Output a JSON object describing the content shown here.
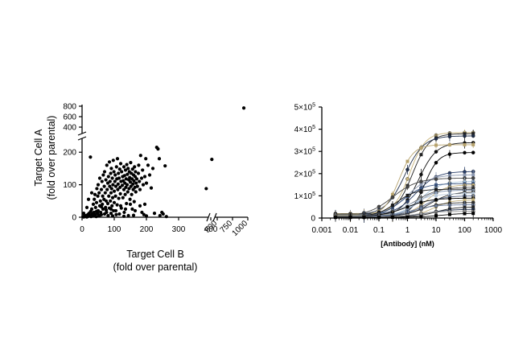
{
  "chart_data": [
    {
      "type": "scatter",
      "xlabel": "Target Cell B",
      "xlabel_sub": "(fold over parental)",
      "ylabel": "Target Cell A",
      "ylabel_sub": "(fold over parental)",
      "x_ticks_lower": [
        "0",
        "100",
        "200",
        "300",
        "400"
      ],
      "x_ticks_upper": [
        "500",
        "750",
        "1000"
      ],
      "y_ticks_lower": [
        "0",
        "100",
        "200"
      ],
      "y_ticks_upper": [
        "400",
        "600",
        "800"
      ],
      "x_axis": {
        "break": [
          300,
          500
        ],
        "lower_range": [
          0,
          300
        ],
        "upper_range": [
          500,
          1000
        ]
      },
      "y_axis": {
        "break": [
          260,
          400
        ],
        "lower_range": [
          0,
          260
        ],
        "upper_range": [
          400,
          800
        ]
      },
      "grid": false,
      "legend": "none",
      "marker_color": "#000000",
      "points": [
        [
          3,
          2
        ],
        [
          5,
          1
        ],
        [
          8,
          3
        ],
        [
          10,
          2
        ],
        [
          12,
          5
        ],
        [
          15,
          1
        ],
        [
          18,
          8
        ],
        [
          20,
          3
        ],
        [
          22,
          12
        ],
        [
          25,
          6
        ],
        [
          26,
          185
        ],
        [
          27,
          18
        ],
        [
          28,
          2
        ],
        [
          30,
          25
        ],
        [
          32,
          10
        ],
        [
          35,
          4
        ],
        [
          35,
          40
        ],
        [
          37,
          15
        ],
        [
          38,
          55
        ],
        [
          40,
          8
        ],
        [
          40,
          70
        ],
        [
          42,
          30
        ],
        [
          44,
          2
        ],
        [
          45,
          45
        ],
        [
          46,
          88
        ],
        [
          48,
          12
        ],
        [
          49,
          65
        ],
        [
          50,
          20
        ],
        [
          50,
          100
        ],
        [
          52,
          5
        ],
        [
          53,
          75
        ],
        [
          55,
          35
        ],
        [
          55,
          120
        ],
        [
          57,
          50
        ],
        [
          58,
          15
        ],
        [
          60,
          85
        ],
        [
          60,
          8
        ],
        [
          62,
          110
        ],
        [
          63,
          40
        ],
        [
          64,
          65
        ],
        [
          65,
          25
        ],
        [
          66,
          130
        ],
        [
          68,
          55
        ],
        [
          69,
          95
        ],
        [
          70,
          10
        ],
        [
          70,
          140
        ],
        [
          72,
          75
        ],
        [
          73,
          30
        ],
        [
          74,
          115
        ],
        [
          75,
          50
        ],
        [
          76,
          15
        ],
        [
          77,
          160
        ],
        [
          78,
          85
        ],
        [
          80,
          42
        ],
        [
          80,
          105
        ],
        [
          81,
          5
        ],
        [
          82,
          125
        ],
        [
          83,
          65
        ],
        [
          85,
          170
        ],
        [
          85,
          28
        ],
        [
          86,
          95
        ],
        [
          87,
          110
        ],
        [
          88,
          50
        ],
        [
          89,
          135
        ],
        [
          90,
          12
        ],
        [
          90,
          75
        ],
        [
          91,
          150
        ],
        [
          92,
          88
        ],
        [
          93,
          35
        ],
        [
          94,
          120
        ],
        [
          95,
          60
        ],
        [
          96,
          100
        ],
        [
          97,
          175
        ],
        [
          98,
          20
        ],
        [
          99,
          140
        ],
        [
          100,
          80
        ],
        [
          100,
          45
        ],
        [
          102,
          110
        ],
        [
          103,
          130
        ],
        [
          104,
          65
        ],
        [
          105,
          95
        ],
        [
          106,
          8
        ],
        [
          107,
          155
        ],
        [
          108,
          118
        ],
        [
          109,
          38
        ],
        [
          110,
          180
        ],
        [
          111,
          85
        ],
        [
          112,
          102
        ],
        [
          113,
          135
        ],
        [
          114,
          58
        ],
        [
          115,
          120
        ],
        [
          116,
          10
        ],
        [
          117,
          148
        ],
        [
          118,
          92
        ],
        [
          119,
          72
        ],
        [
          120,
          165
        ],
        [
          121,
          110
        ],
        [
          122,
          28
        ],
        [
          123,
          140
        ],
        [
          125,
          98
        ],
        [
          126,
          125
        ],
        [
          127,
          60
        ],
        [
          128,
          112
        ],
        [
          130,
          85
        ],
        [
          130,
          155
        ],
        [
          131,
          15
        ],
        [
          132,
          128
        ],
        [
          133,
          105
        ],
        [
          134,
          70
        ],
        [
          135,
          145
        ],
        [
          136,
          92
        ],
        [
          137,
          118
        ],
        [
          138,
          42
        ],
        [
          139,
          162
        ],
        [
          140,
          100
        ],
        [
          141,
          132
        ],
        [
          142,
          78
        ],
        [
          143,
          150
        ],
        [
          144,
          5
        ],
        [
          145,
          115
        ],
        [
          146,
          88
        ],
        [
          147,
          140
        ],
        [
          148,
          122
        ],
        [
          149,
          55
        ],
        [
          150,
          108
        ],
        [
          151,
          168
        ],
        [
          152,
          95
        ],
        [
          153,
          135
        ],
        [
          154,
          70
        ],
        [
          155,
          118
        ],
        [
          156,
          25
        ],
        [
          157,
          148
        ],
        [
          158,
          102
        ],
        [
          159,
          85
        ],
        [
          160,
          130
        ],
        [
          161,
          112
        ],
        [
          162,
          48
        ],
        [
          163,
          155
        ],
        [
          164,
          92
        ],
        [
          165,
          125
        ],
        [
          166,
          140
        ],
        [
          167,
          78
        ],
        [
          168,
          105
        ],
        [
          170,
          118
        ],
        [
          172,
          95
        ],
        [
          175,
          135
        ],
        [
          176,
          160
        ],
        [
          178,
          110
        ],
        [
          180,
          85
        ],
        [
          182,
          190
        ],
        [
          185,
          120
        ],
        [
          186,
          15
        ],
        [
          188,
          145
        ],
        [
          190,
          100
        ],
        [
          192,
          8
        ],
        [
          195,
          125
        ],
        [
          198,
          180
        ],
        [
          200,
          105
        ],
        [
          205,
          160
        ],
        [
          210,
          130
        ],
        [
          215,
          90
        ],
        [
          220,
          150
        ],
        [
          225,
          12
        ],
        [
          232,
          215
        ],
        [
          236,
          210
        ],
        [
          240,
          180
        ],
        [
          242,
          5
        ],
        [
          248,
          15
        ],
        [
          252,
          10
        ],
        [
          258,
          158
        ],
        [
          262,
          2
        ],
        [
          320,
          88
        ],
        [
          412,
          178
        ],
        [
          5,
          12
        ],
        [
          15,
          30
        ],
        [
          20,
          55
        ],
        [
          30,
          75
        ],
        [
          45,
          18
        ],
        [
          60,
          32
        ],
        [
          75,
          22
        ],
        [
          90,
          25
        ],
        [
          105,
          20
        ],
        [
          120,
          35
        ],
        [
          135,
          25
        ],
        [
          150,
          40
        ],
        [
          165,
          20
        ],
        [
          180,
          35
        ],
        [
          195,
          40
        ],
        [
          20,
          4
        ],
        [
          55,
          6
        ],
        [
          95,
          4
        ],
        [
          130,
          3
        ],
        [
          160,
          6
        ],
        [
          200,
          4
        ],
        [
          935,
          765
        ]
      ]
    },
    {
      "type": "line",
      "xlabel": "[Antibody] (nM)",
      "ylabel": "",
      "x_scale": "log",
      "xlim": [
        0.001,
        1000
      ],
      "ylim": [
        0,
        500000
      ],
      "x_ticks": [
        "0.001",
        "0.01",
        "0.1",
        "1",
        "10",
        "100",
        "1000"
      ],
      "y_ticks": [
        {
          "mant": "0",
          "exp": ""
        },
        {
          "mant": "1×10",
          "exp": "5"
        },
        {
          "mant": "2×10",
          "exp": "5"
        },
        {
          "mant": "3×10",
          "exp": "5"
        },
        {
          "mant": "4×10",
          "exp": "5"
        },
        {
          "mant": "5×10",
          "exp": "5"
        }
      ],
      "grid": false,
      "legend": "none",
      "x_points": [
        0.003,
        0.01,
        0.03,
        0.1,
        0.3,
        1,
        3,
        10,
        30,
        100,
        200
      ],
      "series": [
        {
          "bottom": 20000,
          "top": 385000,
          "ec50": 1.2,
          "hill": 1.6,
          "color": "#c8b47a"
        },
        {
          "bottom": 18000,
          "top": 380000,
          "ec50": 1.5,
          "hill": 1.5,
          "color": "#222222"
        },
        {
          "bottom": 15000,
          "top": 370000,
          "ec50": 0.8,
          "hill": 1.3,
          "color": "#1f2e4a"
        },
        {
          "bottom": 10000,
          "top": 340000,
          "ec50": 2.5,
          "hill": 1.4,
          "color": "#111111"
        },
        {
          "bottom": 12000,
          "top": 330000,
          "ec50": 0.5,
          "hill": 1.7,
          "color": "#b7a36e"
        },
        {
          "bottom": 10000,
          "top": 295000,
          "ec50": 4.0,
          "hill": 1.8,
          "color": "#000000"
        },
        {
          "bottom": 15000,
          "top": 210000,
          "ec50": 2.0,
          "hill": 1.2,
          "color": "#2a3f6a"
        },
        {
          "bottom": 10000,
          "top": 195000,
          "ec50": 1.0,
          "hill": 1.1,
          "color": "#8c98b0"
        },
        {
          "bottom": 8000,
          "top": 180000,
          "ec50": 0.3,
          "hill": 1.0,
          "color": "#444444"
        },
        {
          "bottom": 12000,
          "top": 165000,
          "ec50": 3.0,
          "hill": 1.3,
          "color": "#a8c4dc"
        },
        {
          "bottom": 9000,
          "top": 155000,
          "ec50": 0.7,
          "hill": 1.2,
          "color": "#3b5580"
        },
        {
          "bottom": 14000,
          "top": 150000,
          "ec50": 5.0,
          "hill": 1.4,
          "color": "#c2ae78"
        },
        {
          "bottom": 10000,
          "top": 140000,
          "ec50": 1.8,
          "hill": 1.0,
          "color": "#666666"
        },
        {
          "bottom": 8000,
          "top": 130000,
          "ec50": 0.4,
          "hill": 1.3,
          "color": "#1a1a1a"
        },
        {
          "bottom": 11000,
          "top": 125000,
          "ec50": 2.2,
          "hill": 1.5,
          "color": "#7f91ad"
        },
        {
          "bottom": 9000,
          "top": 118000,
          "ec50": 6.0,
          "hill": 1.2,
          "color": "#2d2d2d"
        },
        {
          "bottom": 7000,
          "top": 110000,
          "ec50": 1.1,
          "hill": 1.1,
          "color": "#b9c9da"
        },
        {
          "bottom": 8000,
          "top": 100000,
          "ec50": 3.5,
          "hill": 1.3,
          "color": "#556688"
        },
        {
          "bottom": 6000,
          "top": 90000,
          "ec50": 0.9,
          "hill": 1.0,
          "color": "#000000"
        },
        {
          "bottom": 7000,
          "top": 82000,
          "ec50": 8.0,
          "hill": 1.4,
          "color": "#c4b27c"
        },
        {
          "bottom": 5000,
          "top": 70000,
          "ec50": 2.8,
          "hill": 1.2,
          "color": "#333333"
        },
        {
          "bottom": 6000,
          "top": 60000,
          "ec50": 1.4,
          "hill": 1.1,
          "color": "#6f80a0"
        },
        {
          "bottom": 5000,
          "top": 50000,
          "ec50": 10.0,
          "hill": 1.3,
          "color": "#222222"
        },
        {
          "bottom": 4000,
          "top": 40000,
          "ec50": 4.5,
          "hill": 1.0,
          "color": "#1f2e4a"
        },
        {
          "bottom": 4000,
          "top": 30000,
          "ec50": 2.0,
          "hill": 1.2,
          "color": "#999999"
        },
        {
          "bottom": 3000,
          "top": 22000,
          "ec50": 15.0,
          "hill": 1.1,
          "color": "#000000"
        }
      ]
    }
  ]
}
